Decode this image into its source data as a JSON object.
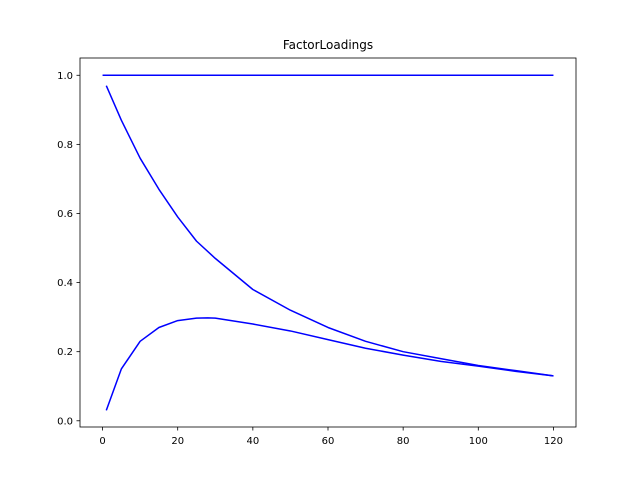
{
  "chart_data": {
    "type": "line",
    "title": "FactorLoadings",
    "xlabel": "",
    "ylabel": "",
    "xlim": [
      -6,
      126
    ],
    "ylim": [
      -0.018,
      1.05
    ],
    "x_ticks": [
      0,
      20,
      40,
      60,
      80,
      100,
      120
    ],
    "y_ticks": [
      0.0,
      0.2,
      0.4,
      0.6,
      0.8,
      1.0
    ],
    "x_tick_labels": [
      "0",
      "20",
      "40",
      "60",
      "80",
      "100",
      "120"
    ],
    "y_tick_labels": [
      "0.0",
      "0.2",
      "0.4",
      "0.6",
      "0.8",
      "1.0"
    ],
    "grid": false,
    "legend": false,
    "line_color": "#0000ff",
    "series": [
      {
        "x": [
          0,
          120
        ],
        "values": [
          1.0,
          1.0
        ]
      },
      {
        "x": [
          1,
          5,
          10,
          15,
          20,
          25,
          30,
          40,
          50,
          60,
          70,
          80,
          90,
          100,
          110,
          120
        ],
        "values": [
          0.97,
          0.87,
          0.76,
          0.67,
          0.59,
          0.52,
          0.47,
          0.38,
          0.32,
          0.27,
          0.23,
          0.2,
          0.18,
          0.16,
          0.145,
          0.13
        ]
      },
      {
        "x": [
          1,
          5,
          10,
          15,
          20,
          25,
          28,
          30,
          40,
          50,
          60,
          70,
          80,
          90,
          100,
          110,
          120
        ],
        "values": [
          0.03,
          0.15,
          0.23,
          0.27,
          0.29,
          0.297,
          0.298,
          0.297,
          0.28,
          0.26,
          0.235,
          0.21,
          0.19,
          0.172,
          0.158,
          0.143,
          0.13
        ]
      }
    ]
  }
}
